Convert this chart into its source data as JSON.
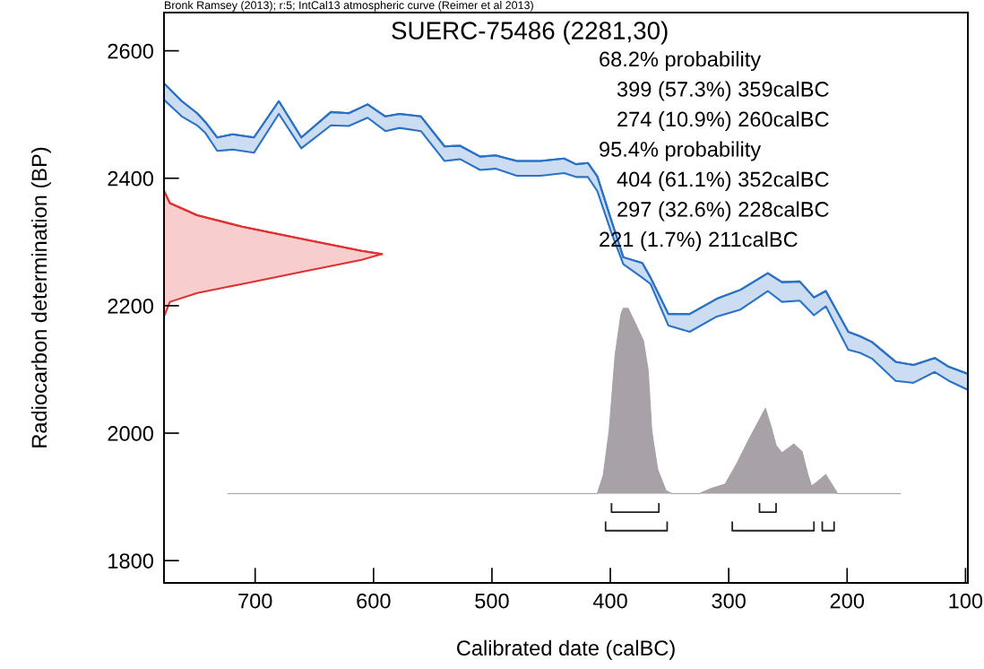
{
  "chart_data": {
    "type": "area",
    "title": "SUERC-75486 (2281,30)",
    "xlabel": "Calibrated date (calBC)",
    "ylabel": "Radiocarbon determination (BP)",
    "annotations": [
      "Bronk Ramsey (2013); r:5; IntCal13 atmospheric curve (Reimer et al 2013)",
      "68.2% probability",
      "399 (57.3%) 359calBC",
      "274 (10.9%) 260calBC",
      "95.4% probability",
      "404 (61.1%) 352calBC",
      "297 (32.6%) 228calBC",
      "221 (1.7%) 211calBC"
    ],
    "xlim": [
      777,
      98
    ],
    "xticks": [
      700,
      600,
      500,
      400,
      300,
      200,
      100
    ],
    "ylim": [
      1765,
      2660
    ],
    "yticks": [
      1800,
      2000,
      2200,
      2400,
      2600
    ],
    "grid": false,
    "legend": false,
    "series": [
      {
        "type": "line",
        "color": "#2a72c8",
        "upper": [
          2549,
          2521,
          2502,
          2488,
          2464,
          2469,
          2464,
          2521,
          2464,
          2504,
          2502,
          2516,
          2497,
          2501,
          2497,
          2450,
          2451,
          2434,
          2436,
          2427,
          2427,
          2431,
          2422,
          2424,
          2403,
          2333,
          2276,
          2267,
          2244,
          2187,
          2187,
          2211,
          2225,
          2251,
          2237,
          2238,
          2213,
          2223,
          2159,
          2152,
          2143,
          2112,
          2107,
          2118,
          2104,
          2093
        ],
        "x": [
          777,
          762,
          749,
          742,
          732,
          719,
          701,
          680,
          661,
          636,
          621,
          605,
          590,
          578,
          560,
          540,
          527,
          510,
          497,
          479,
          459,
          439,
          429,
          419,
          411,
          399,
          389,
          373,
          366,
          351,
          333,
          310,
          290,
          267,
          255,
          240,
          228,
          218,
          199,
          189,
          179,
          159,
          144,
          126,
          114,
          98
        ],
        "values": [
          2549,
          2521,
          2502,
          2488,
          2464,
          2469,
          2464,
          2521,
          2464,
          2504,
          2502,
          2516,
          2497,
          2501,
          2497,
          2450,
          2451,
          2434,
          2436,
          2427,
          2427,
          2431,
          2422,
          2424,
          2403,
          2333,
          2276,
          2267,
          2244,
          2187,
          2187,
          2211,
          2225,
          2251,
          2237,
          2238,
          2213,
          2223,
          2159,
          2152,
          2143,
          2112,
          2107,
          2118,
          2104,
          2093
        ],
        "lower": [
          2523,
          2497,
          2483,
          2471,
          2443,
          2445,
          2440,
          2501,
          2447,
          2483,
          2482,
          2495,
          2474,
          2479,
          2474,
          2427,
          2430,
          2413,
          2415,
          2404,
          2404,
          2408,
          2402,
          2402,
          2380,
          2314,
          2265,
          2244,
          2234,
          2169,
          2159,
          2183,
          2194,
          2223,
          2206,
          2208,
          2185,
          2199,
          2131,
          2126,
          2117,
          2082,
          2079,
          2096,
          2082,
          2068
        ]
      },
      {
        "type": "line",
        "color": "#e03030",
        "upper": [
          2380,
          2361,
          2342,
          2324,
          2305,
          2286,
          2281
        ],
        "x": [
          777,
          772,
          749,
          711,
          661,
          610,
          593
        ],
        "values": [
          2380,
          2361,
          2342,
          2324,
          2305,
          2286,
          2281
        ],
        "lower": [
          2183,
          2206,
          2220,
          2234,
          2253,
          2272,
          2281
        ]
      },
      {
        "color": "#a8a2a8",
        "x": [
          723,
          411,
          406,
          401,
          396,
          391,
          389,
          385,
          378,
          372,
          368,
          365,
          360,
          353,
          348,
          325,
          315,
          303,
          293,
          283,
          275,
          269,
          264,
          260,
          255,
          245,
          238,
          233,
          230,
          225,
          218,
          213,
          208,
          155
        ],
        "values": [
          1905,
          1905,
          1934,
          2004,
          2122,
          2187,
          2196,
          2196,
          2169,
          2145,
          2098,
          2004,
          1943,
          1910,
          1905,
          1905,
          1913,
          1920,
          1953,
          1990,
          2018,
          2039,
          2009,
          1981,
          1969,
          1983,
          1971,
          1934,
          1917,
          1924,
          1935,
          1920,
          1905,
          1905
        ]
      },
      {
        "type": "line",
        "color": "#222222",
        "x": [
          399,
          399,
          359,
          359
        ],
        "values": [
          1889,
          1876,
          1876,
          1889
        ]
      },
      {
        "type": "line",
        "color": "#222222",
        "x": [
          274,
          274,
          260,
          260
        ],
        "values": [
          1889,
          1876,
          1876,
          1889
        ]
      },
      {
        "type": "line",
        "color": "#222222",
        "x": [
          404,
          404,
          352,
          352
        ],
        "values": [
          1860,
          1847,
          1847,
          1860
        ]
      },
      {
        "type": "line",
        "color": "#222222",
        "x": [
          297,
          297,
          228,
          228
        ],
        "values": [
          1860,
          1847,
          1847,
          1860
        ]
      },
      {
        "type": "line",
        "color": "#222222",
        "x": [
          221,
          221,
          211,
          211
        ],
        "values": [
          1860,
          1847,
          1847,
          1860
        ]
      }
    ]
  }
}
